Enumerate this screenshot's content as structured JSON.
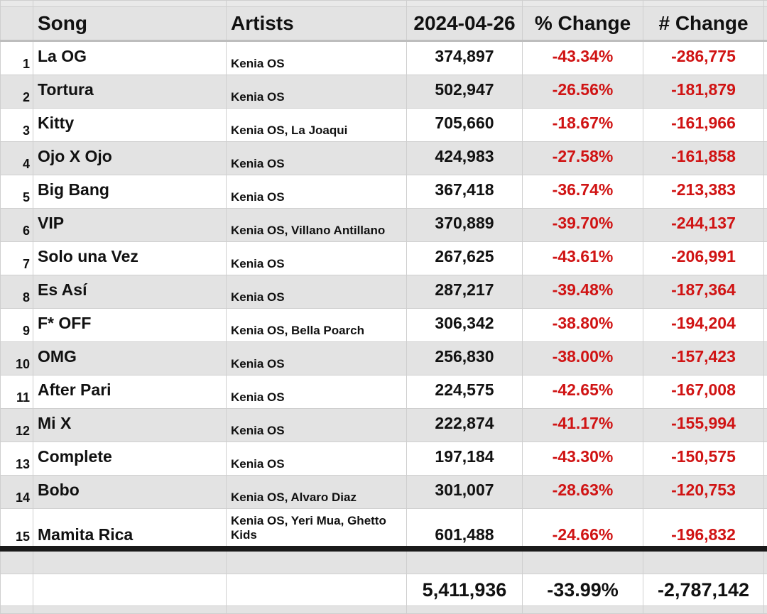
{
  "header": {
    "song": "Song",
    "artists": "Artists",
    "date": "2024-04-26",
    "pct_change": "% Change",
    "abs_change": "# Change"
  },
  "rows": [
    {
      "rank": "1",
      "song": "La OG",
      "artists": "Kenia OS",
      "streams": "374,897",
      "pct": "-43.34%",
      "abs": "-286,775"
    },
    {
      "rank": "2",
      "song": "Tortura",
      "artists": "Kenia OS",
      "streams": "502,947",
      "pct": "-26.56%",
      "abs": "-181,879"
    },
    {
      "rank": "3",
      "song": "Kitty",
      "artists": "Kenia OS, La Joaqui",
      "streams": "705,660",
      "pct": "-18.67%",
      "abs": "-161,966"
    },
    {
      "rank": "4",
      "song": "Ojo X Ojo",
      "artists": "Kenia OS",
      "streams": "424,983",
      "pct": "-27.58%",
      "abs": "-161,858"
    },
    {
      "rank": "5",
      "song": "Big Bang",
      "artists": "Kenia OS",
      "streams": "367,418",
      "pct": "-36.74%",
      "abs": "-213,383"
    },
    {
      "rank": "6",
      "song": "VIP",
      "artists": "Kenia OS, Villano Antillano",
      "streams": "370,889",
      "pct": "-39.70%",
      "abs": "-244,137"
    },
    {
      "rank": "7",
      "song": "Solo una Vez",
      "artists": "Kenia OS",
      "streams": "267,625",
      "pct": "-43.61%",
      "abs": "-206,991"
    },
    {
      "rank": "8",
      "song": "Es Así",
      "artists": "Kenia OS",
      "streams": "287,217",
      "pct": "-39.48%",
      "abs": "-187,364"
    },
    {
      "rank": "9",
      "song": "F* OFF",
      "artists": "Kenia OS, Bella Poarch",
      "streams": "306,342",
      "pct": "-38.80%",
      "abs": "-194,204"
    },
    {
      "rank": "10",
      "song": "OMG",
      "artists": "Kenia OS",
      "streams": "256,830",
      "pct": "-38.00%",
      "abs": "-157,423"
    },
    {
      "rank": "11",
      "song": "After Pari",
      "artists": "Kenia OS",
      "streams": "224,575",
      "pct": "-42.65%",
      "abs": "-167,008"
    },
    {
      "rank": "12",
      "song": "Mi X",
      "artists": "Kenia OS",
      "streams": "222,874",
      "pct": "-41.17%",
      "abs": "-155,994"
    },
    {
      "rank": "13",
      "song": "Complete",
      "artists": "Kenia OS",
      "streams": "197,184",
      "pct": "-43.30%",
      "abs": "-150,575"
    },
    {
      "rank": "14",
      "song": "Bobo",
      "artists": "Kenia OS, Alvaro Diaz",
      "streams": "301,007",
      "pct": "-28.63%",
      "abs": "-120,753"
    },
    {
      "rank": "15",
      "song": "Mamita Rica",
      "artists": "Kenia OS, Yeri Mua, Ghetto Kids",
      "streams": "601,488",
      "pct": "-24.66%",
      "abs": "-196,832"
    }
  ],
  "totals": {
    "streams": "5,411,936",
    "pct": "-33.99%",
    "abs": "-2,787,142"
  },
  "colors": {
    "negative_text": "#d01414",
    "header_bg": "#e3e3e3",
    "alt_row_bg": "#e3e3e3"
  }
}
